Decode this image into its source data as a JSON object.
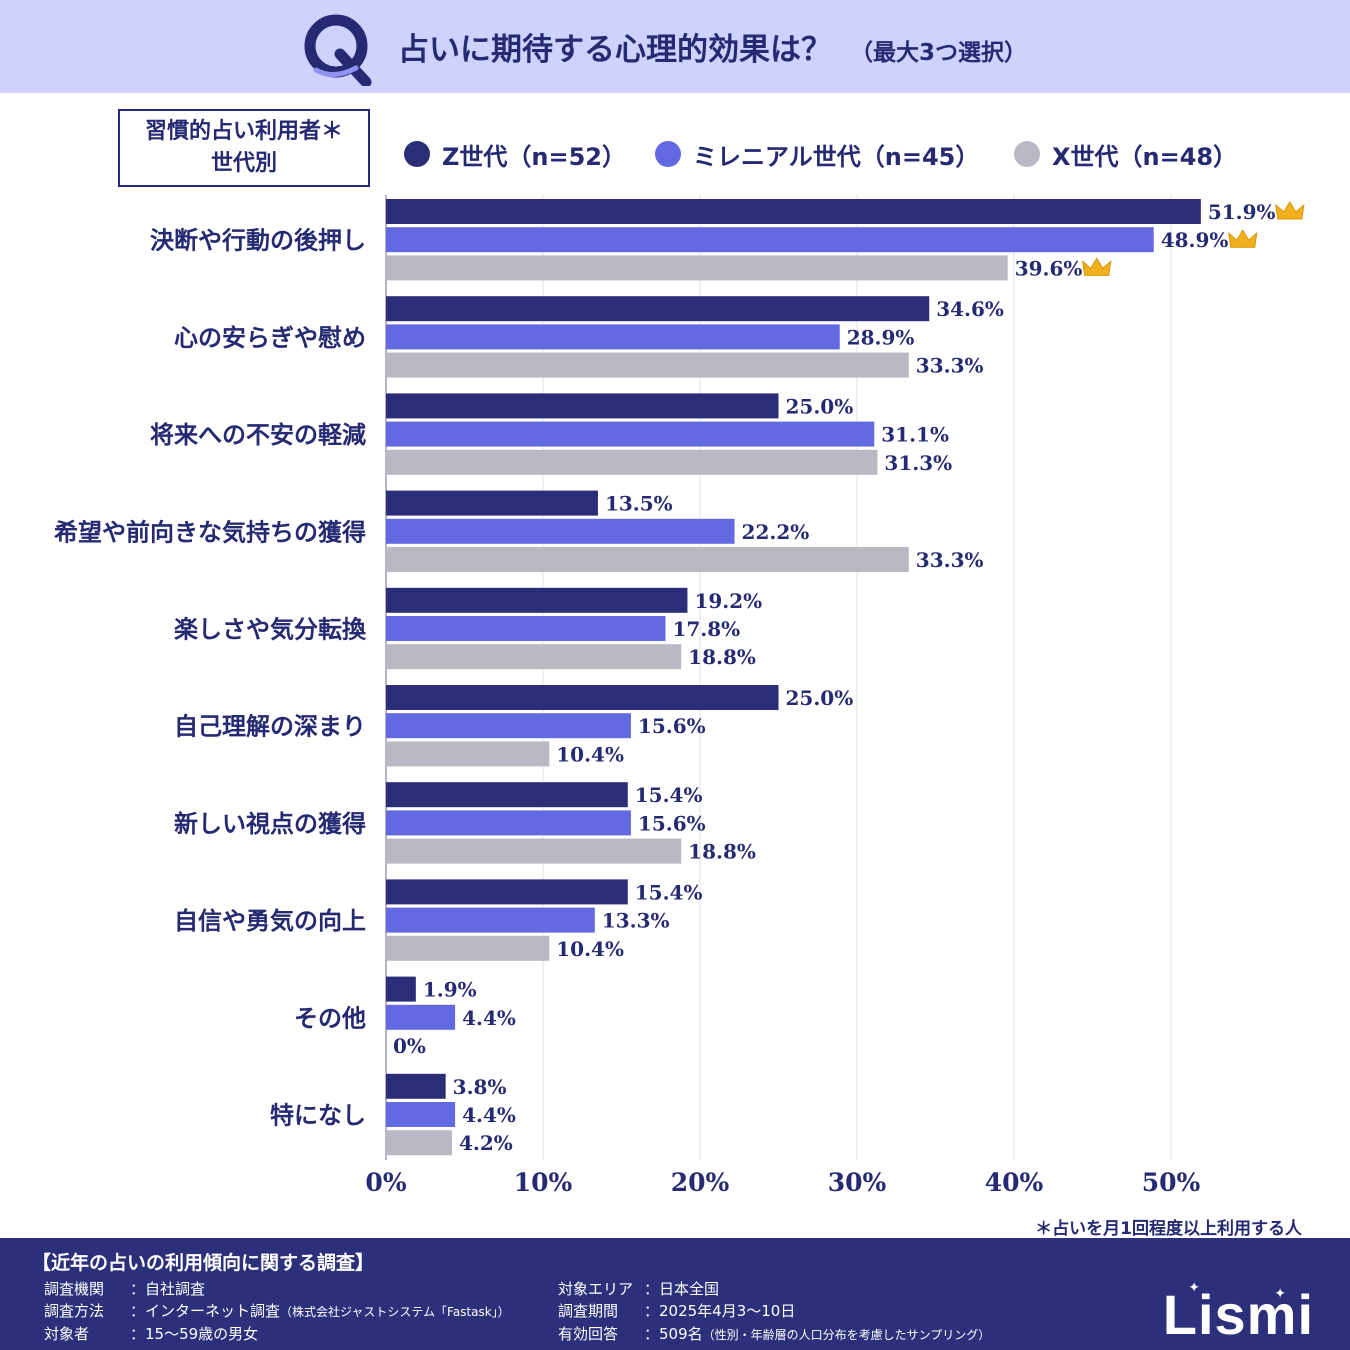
{
  "header": {
    "title": "占いに期待する心理的効果は？",
    "subtitle": "（最大3つ選択）",
    "q_letter": "Q"
  },
  "group_box": {
    "line1": "習慣的占い利用者＊",
    "line2": "世代別"
  },
  "legend": [
    {
      "label": "Z世代（n=52）",
      "color": "#2b2d78"
    },
    {
      "label": "ミレニアル世代（n=45）",
      "color": "#6369e0"
    },
    {
      "label": "X世代（n=48）",
      "color": "#b9b9c3"
    }
  ],
  "chart_data": {
    "type": "bar",
    "orientation": "horizontal",
    "categories": [
      "決断や行動の後押し",
      "心の安らぎや慰め",
      "将来への不安の軽減",
      "希望や前向きな気持ちの獲得",
      "楽しさや気分転換",
      "自己理解の深まり",
      "新しい視点の獲得",
      "自信や勇気の向上",
      "その他",
      "特になし"
    ],
    "series": [
      {
        "name": "Z世代（n=52）",
        "color": "#2b2d78",
        "values": [
          51.9,
          34.6,
          25.0,
          13.5,
          19.2,
          25.0,
          15.4,
          15.4,
          1.9,
          3.8
        ],
        "labels": [
          "51.9%",
          "34.6%",
          "25.0%",
          "13.5%",
          "19.2%",
          "25.0%",
          "15.4%",
          "15.4%",
          "1.9%",
          "3.8%"
        ]
      },
      {
        "name": "ミレニアル世代（n=45）",
        "color": "#6369e0",
        "values": [
          48.9,
          28.9,
          31.1,
          22.2,
          17.8,
          15.6,
          15.6,
          13.3,
          4.4,
          4.4
        ],
        "labels": [
          "48.9%",
          "28.9%",
          "31.1%",
          "22.2%",
          "17.8%",
          "15.6%",
          "15.6%",
          "13.3%",
          "4.4%",
          "4.4%"
        ]
      },
      {
        "name": "X世代（n=48）",
        "color": "#b9b9c3",
        "values": [
          39.6,
          33.3,
          31.3,
          33.3,
          18.8,
          10.4,
          18.8,
          10.4,
          0,
          4.2
        ],
        "labels": [
          "39.6%",
          "33.3%",
          "31.3%",
          "33.3%",
          "18.8%",
          "10.4%",
          "18.8%",
          "10.4%",
          "0%",
          "4.2%"
        ]
      }
    ],
    "xlim": [
      0,
      50
    ],
    "xticks": [
      "0%",
      "10%",
      "20%",
      "30%",
      "40%",
      "50%"
    ],
    "grid": true,
    "top_marker": "crown-icon on top value of each series"
  },
  "note": "＊占いを月1回程度以上利用する人",
  "footer": {
    "title": "【近年の占いの利用傾向に関する調査】",
    "left": [
      {
        "key": "調査機関",
        "value": "：自社調査",
        "small": ""
      },
      {
        "key": "調査方法",
        "value": "：インターネット調査",
        "small": "（株式会社ジャストシステム「Fastask」）"
      },
      {
        "key": "対象者",
        "value": "：15〜59歳の男女",
        "small": ""
      }
    ],
    "right": [
      {
        "key": "対象エリア",
        "value": "：日本全国",
        "small": ""
      },
      {
        "key": "調査期間",
        "value": "：2025年4月3〜10日",
        "small": ""
      },
      {
        "key": "有効回答",
        "value": "：509名",
        "small": "（性別・年齢層の人口分布を考慮したサンプリング）"
      }
    ],
    "logo": "Lismi"
  }
}
